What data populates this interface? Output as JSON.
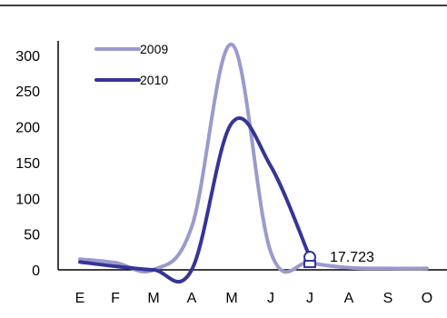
{
  "chart_data": {
    "type": "line",
    "categories": [
      "E",
      "F",
      "M",
      "A",
      "M",
      "J",
      "J",
      "A",
      "S",
      "O"
    ],
    "ylim": [
      0,
      320
    ],
    "yticks": [
      0,
      50,
      100,
      150,
      200,
      250,
      300
    ],
    "grid": false,
    "legend_position": "top-left",
    "series": [
      {
        "name": "2009",
        "color": "#9a9acd",
        "values": [
          15,
          10,
          0,
          60,
          315,
          25,
          10,
          3,
          2,
          2
        ]
      },
      {
        "name": "2010",
        "color": "#353597",
        "values": [
          11,
          5,
          0,
          0,
          205,
          145,
          17.723,
          null,
          null,
          null
        ]
      }
    ],
    "annotation": {
      "series": 1,
      "index": 6,
      "label": "17.723"
    }
  }
}
